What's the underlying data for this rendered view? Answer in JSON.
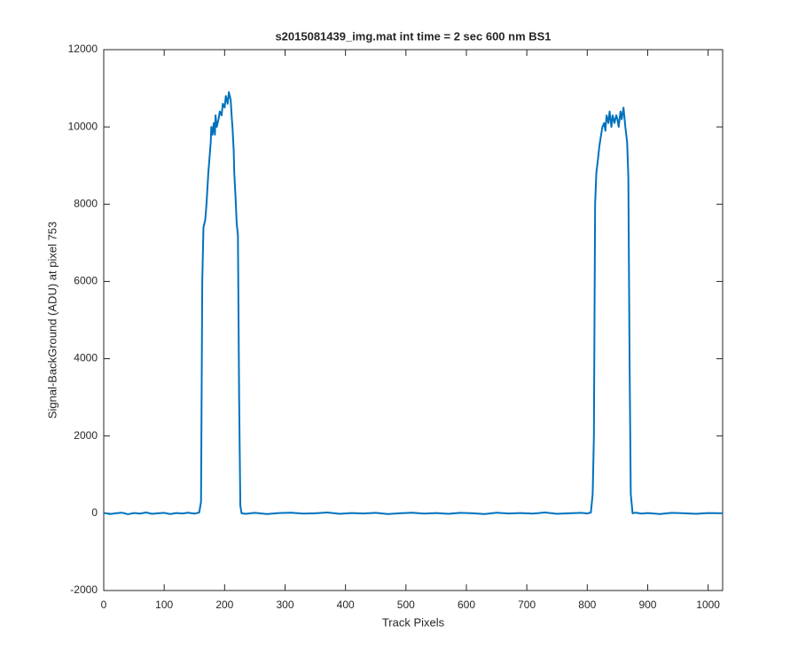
{
  "chart_data": {
    "type": "line",
    "title": "s2015081439_img.mat int time = 2 sec  600 nm BS1",
    "x_label": "Track Pixels",
    "y_label": "Signal-BackGround (ADU) at pixel 753",
    "color": "#0072bd",
    "x": [
      0,
      10,
      20,
      30,
      40,
      50,
      60,
      70,
      80,
      90,
      100,
      110,
      120,
      130,
      140,
      150,
      158,
      161,
      163,
      165,
      168,
      170,
      173,
      175,
      177,
      178,
      180,
      182,
      184,
      185,
      187,
      190,
      192,
      195,
      197,
      200,
      202,
      205,
      207,
      210,
      212,
      213,
      215,
      216,
      218,
      220,
      222,
      224,
      226,
      228,
      235,
      250,
      270,
      290,
      310,
      330,
      350,
      370,
      390,
      410,
      430,
      450,
      470,
      490,
      510,
      530,
      550,
      570,
      590,
      610,
      630,
      650,
      670,
      690,
      710,
      730,
      750,
      770,
      790,
      800,
      806,
      809,
      811,
      813,
      815,
      818,
      820,
      823,
      825,
      828,
      830,
      832,
      835,
      837,
      840,
      842,
      845,
      848,
      850,
      852,
      855,
      857,
      860,
      863,
      866,
      868,
      870,
      872,
      875,
      880,
      890,
      900,
      920,
      940,
      960,
      980,
      1000,
      1024
    ],
    "values": [
      10,
      -20,
      0,
      15,
      -25,
      5,
      -10,
      20,
      -15,
      0,
      10,
      -20,
      5,
      -5,
      15,
      -10,
      20,
      300,
      6000,
      7400,
      7600,
      8000,
      8800,
      9200,
      9600,
      10000,
      9800,
      10100,
      9800,
      10300,
      10000,
      10200,
      10400,
      10300,
      10600,
      10500,
      10800,
      10600,
      10900,
      10700,
      10200,
      10000,
      9400,
      8800,
      8200,
      7500,
      7200,
      3000,
      200,
      0,
      -15,
      10,
      -20,
      5,
      15,
      -10,
      0,
      20,
      -15,
      5,
      -5,
      10,
      -20,
      0,
      15,
      -10,
      5,
      -15,
      10,
      0,
      -20,
      15,
      -5,
      5,
      -10,
      20,
      -15,
      0,
      10,
      -5,
      20,
      500,
      2000,
      8000,
      8800,
      9200,
      9500,
      9800,
      10000,
      10100,
      9900,
      10300,
      10100,
      10400,
      10000,
      10300,
      10100,
      10300,
      10200,
      10000,
      10400,
      10200,
      10500,
      10000,
      9600,
      8700,
      4000,
      500,
      0,
      15,
      -10,
      5,
      -20,
      10,
      0,
      -15,
      5,
      0
    ],
    "xlim": [
      0,
      1024
    ],
    "xticks": [
      0,
      100,
      200,
      300,
      400,
      500,
      600,
      700,
      800,
      900,
      1000
    ],
    "ylim": [
      -2000,
      12000
    ],
    "yticks": [
      -2000,
      0,
      2000,
      4000,
      6000,
      8000,
      10000,
      12000
    ],
    "grid": false
  }
}
